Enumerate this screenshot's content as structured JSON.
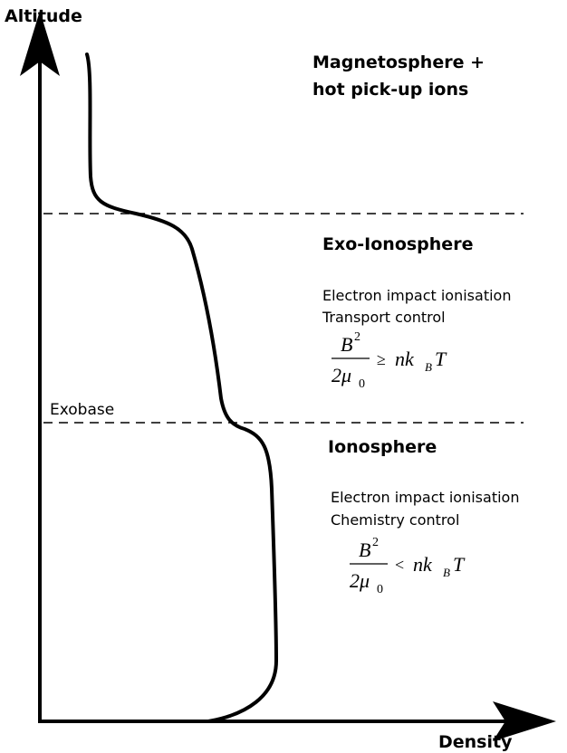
{
  "axes": {
    "y_label": "Altitude",
    "x_label": "Density"
  },
  "regions": [
    {
      "title": [
        "Magnetosphere +",
        "hot pick-up ions"
      ]
    },
    {
      "title": [
        "Exo-Ionosphere"
      ],
      "lines": [
        "Electron impact ionisation",
        "Transport control"
      ],
      "formula": {
        "numerator": "B",
        "numerator_sup": "2",
        "denominator": "2μ",
        "denominator_sub": "0",
        "relation": "≥",
        "rhs": "nk",
        "rhs_sub": "B",
        "rhs_end": "T"
      }
    },
    {
      "title": [
        "Ionosphere"
      ],
      "lines": [
        "Electron impact ionisation",
        "Chemistry control"
      ],
      "formula": {
        "numerator": "B",
        "numerator_sup": "2",
        "denominator": "2μ",
        "denominator_sub": "0",
        "relation": "<",
        "rhs": "nk",
        "rhs_sub": "B",
        "rhs_end": "T"
      }
    }
  ],
  "boundary_label": "Exobase"
}
